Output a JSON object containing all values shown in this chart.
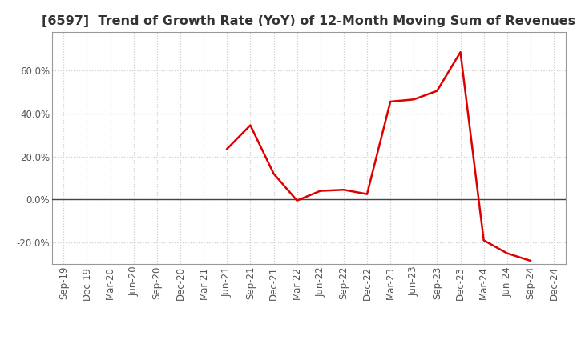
{
  "title": "[6597]  Trend of Growth Rate (YoY) of 12-Month Moving Sum of Revenues",
  "title_fontsize": 11.5,
  "line_color": "#dd0000",
  "line_width": 1.8,
  "background_color": "#ffffff",
  "plot_bg_color": "#ffffff",
  "grid_color": "#cccccc",
  "zero_line_color": "#444444",
  "dates": [
    "Sep-19",
    "Dec-19",
    "Mar-20",
    "Jun-20",
    "Sep-20",
    "Dec-20",
    "Mar-21",
    "Jun-21",
    "Sep-21",
    "Dec-21",
    "Mar-22",
    "Jun-22",
    "Sep-22",
    "Dec-22",
    "Mar-23",
    "Jun-23",
    "Sep-23",
    "Dec-23",
    "Mar-24",
    "Jun-24",
    "Sep-24",
    "Dec-24"
  ],
  "values": [
    null,
    null,
    null,
    null,
    null,
    null,
    null,
    0.235,
    0.345,
    0.12,
    -0.005,
    0.04,
    0.045,
    0.025,
    0.455,
    0.465,
    0.505,
    0.685,
    -0.19,
    -0.25,
    -0.285,
    null
  ],
  "ylim": [
    -0.3,
    0.78
  ],
  "yticks": [
    -0.2,
    0.0,
    0.2,
    0.4,
    0.6
  ],
  "tick_label_color": "#555555",
  "tick_fontsize": 8.5,
  "spine_color": "#999999"
}
